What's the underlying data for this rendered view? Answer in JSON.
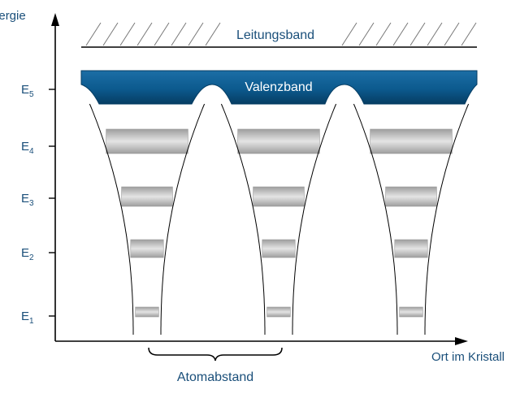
{
  "axes": {
    "y_label": "Energie",
    "x_label": "Ort im Kristall"
  },
  "bands": {
    "conduction": "Leitungsband",
    "valence": "Valenzband"
  },
  "levels": [
    {
      "name": "E",
      "sub": "1"
    },
    {
      "name": "E",
      "sub": "2"
    },
    {
      "name": "E",
      "sub": "3"
    },
    {
      "name": "E",
      "sub": "4"
    },
    {
      "name": "E",
      "sub": "5"
    }
  ],
  "annotations": {
    "atom_spacing": "Atomabstand"
  },
  "colors": {
    "accent": "#0d5a8c",
    "valence_dark": "#0a4a78",
    "label": "#1a4f7a",
    "level_gray": "#bdbdbd",
    "axis": "#000000"
  }
}
